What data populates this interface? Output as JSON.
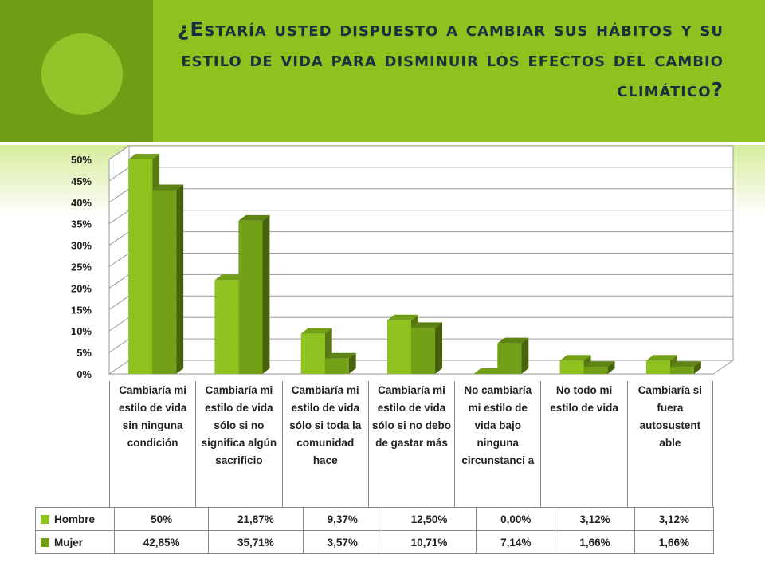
{
  "slide": {
    "title": "¿Estaría usted dispuesto a cambiar sus hábitos y su estilo de vida para disminuir los efectos del cambio climático?",
    "title_color": "#1b2f3f",
    "band_color": "#8dc21f",
    "band_dark_color": "#6f9d15"
  },
  "chart_data": {
    "type": "bar",
    "title": "",
    "xlabel": "",
    "ylabel": "",
    "ylim": [
      0,
      50
    ],
    "y_ticks": [
      "0%",
      "5%",
      "10%",
      "15%",
      "20%",
      "25%",
      "30%",
      "35%",
      "40%",
      "45%",
      "50%"
    ],
    "grid": true,
    "style": "3d-clustered-column",
    "legend": "data-table",
    "categories": [
      "Cambiaría mi estilo de vida sin ninguna condición",
      "Cambiaría mi estilo de vida sólo si no significa algún sacrificio",
      "Cambiaría mi estilo de vida sólo si toda la comunidad hace",
      "Cambiaría mi estilo de vida sólo si no debo de gastar más",
      "No cambiaría mi estilo de vida bajo ninguna circunstanci a",
      "No todo mi estilo de vida",
      "Cambiaría si fuera autosustent able"
    ],
    "series": [
      {
        "name": "Hombre",
        "color": "#8dc21f",
        "values": [
          50,
          21.87,
          9.37,
          12.5,
          0,
          3.12,
          3.12
        ],
        "labels": [
          "50%",
          "21,87%",
          "9,37%",
          "12,50%",
          "0,00%",
          "3,12%",
          "3,12%"
        ]
      },
      {
        "name": "Mujer",
        "color": "#72a017",
        "values": [
          42.85,
          35.71,
          3.57,
          10.71,
          7.14,
          1.66,
          1.66
        ],
        "labels": [
          "42,85%",
          "35,71%",
          "3,57%",
          "10,71%",
          "7,14%",
          "1,66%",
          "1,66%"
        ]
      }
    ]
  }
}
